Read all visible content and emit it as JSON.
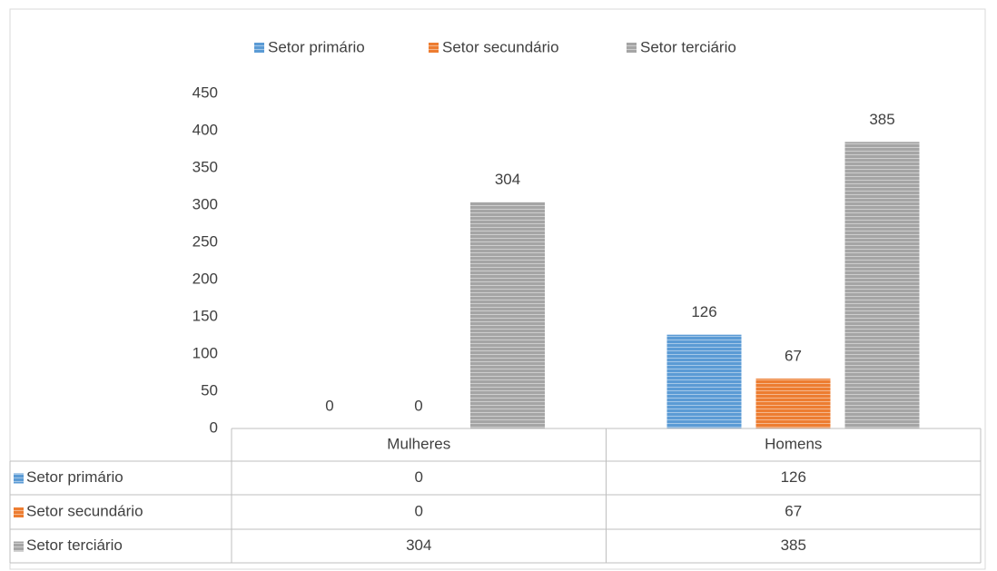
{
  "chart_data": {
    "type": "bar",
    "categories": [
      "Mulheres",
      "Homens"
    ],
    "series": [
      {
        "name": "Setor primário",
        "color": "#5b9bd5",
        "values": [
          0,
          126
        ]
      },
      {
        "name": "Setor secundário",
        "color": "#ed7d31",
        "values": [
          0,
          67
        ]
      },
      {
        "name": "Setor terciário",
        "color": "#a5a5a5",
        "values": [
          304,
          385
        ]
      }
    ],
    "ylim": [
      0,
      450
    ],
    "yticks": [
      0,
      50,
      100,
      150,
      200,
      250,
      300,
      350,
      400,
      450
    ],
    "grid": false,
    "legend": "top",
    "data_table": true
  }
}
